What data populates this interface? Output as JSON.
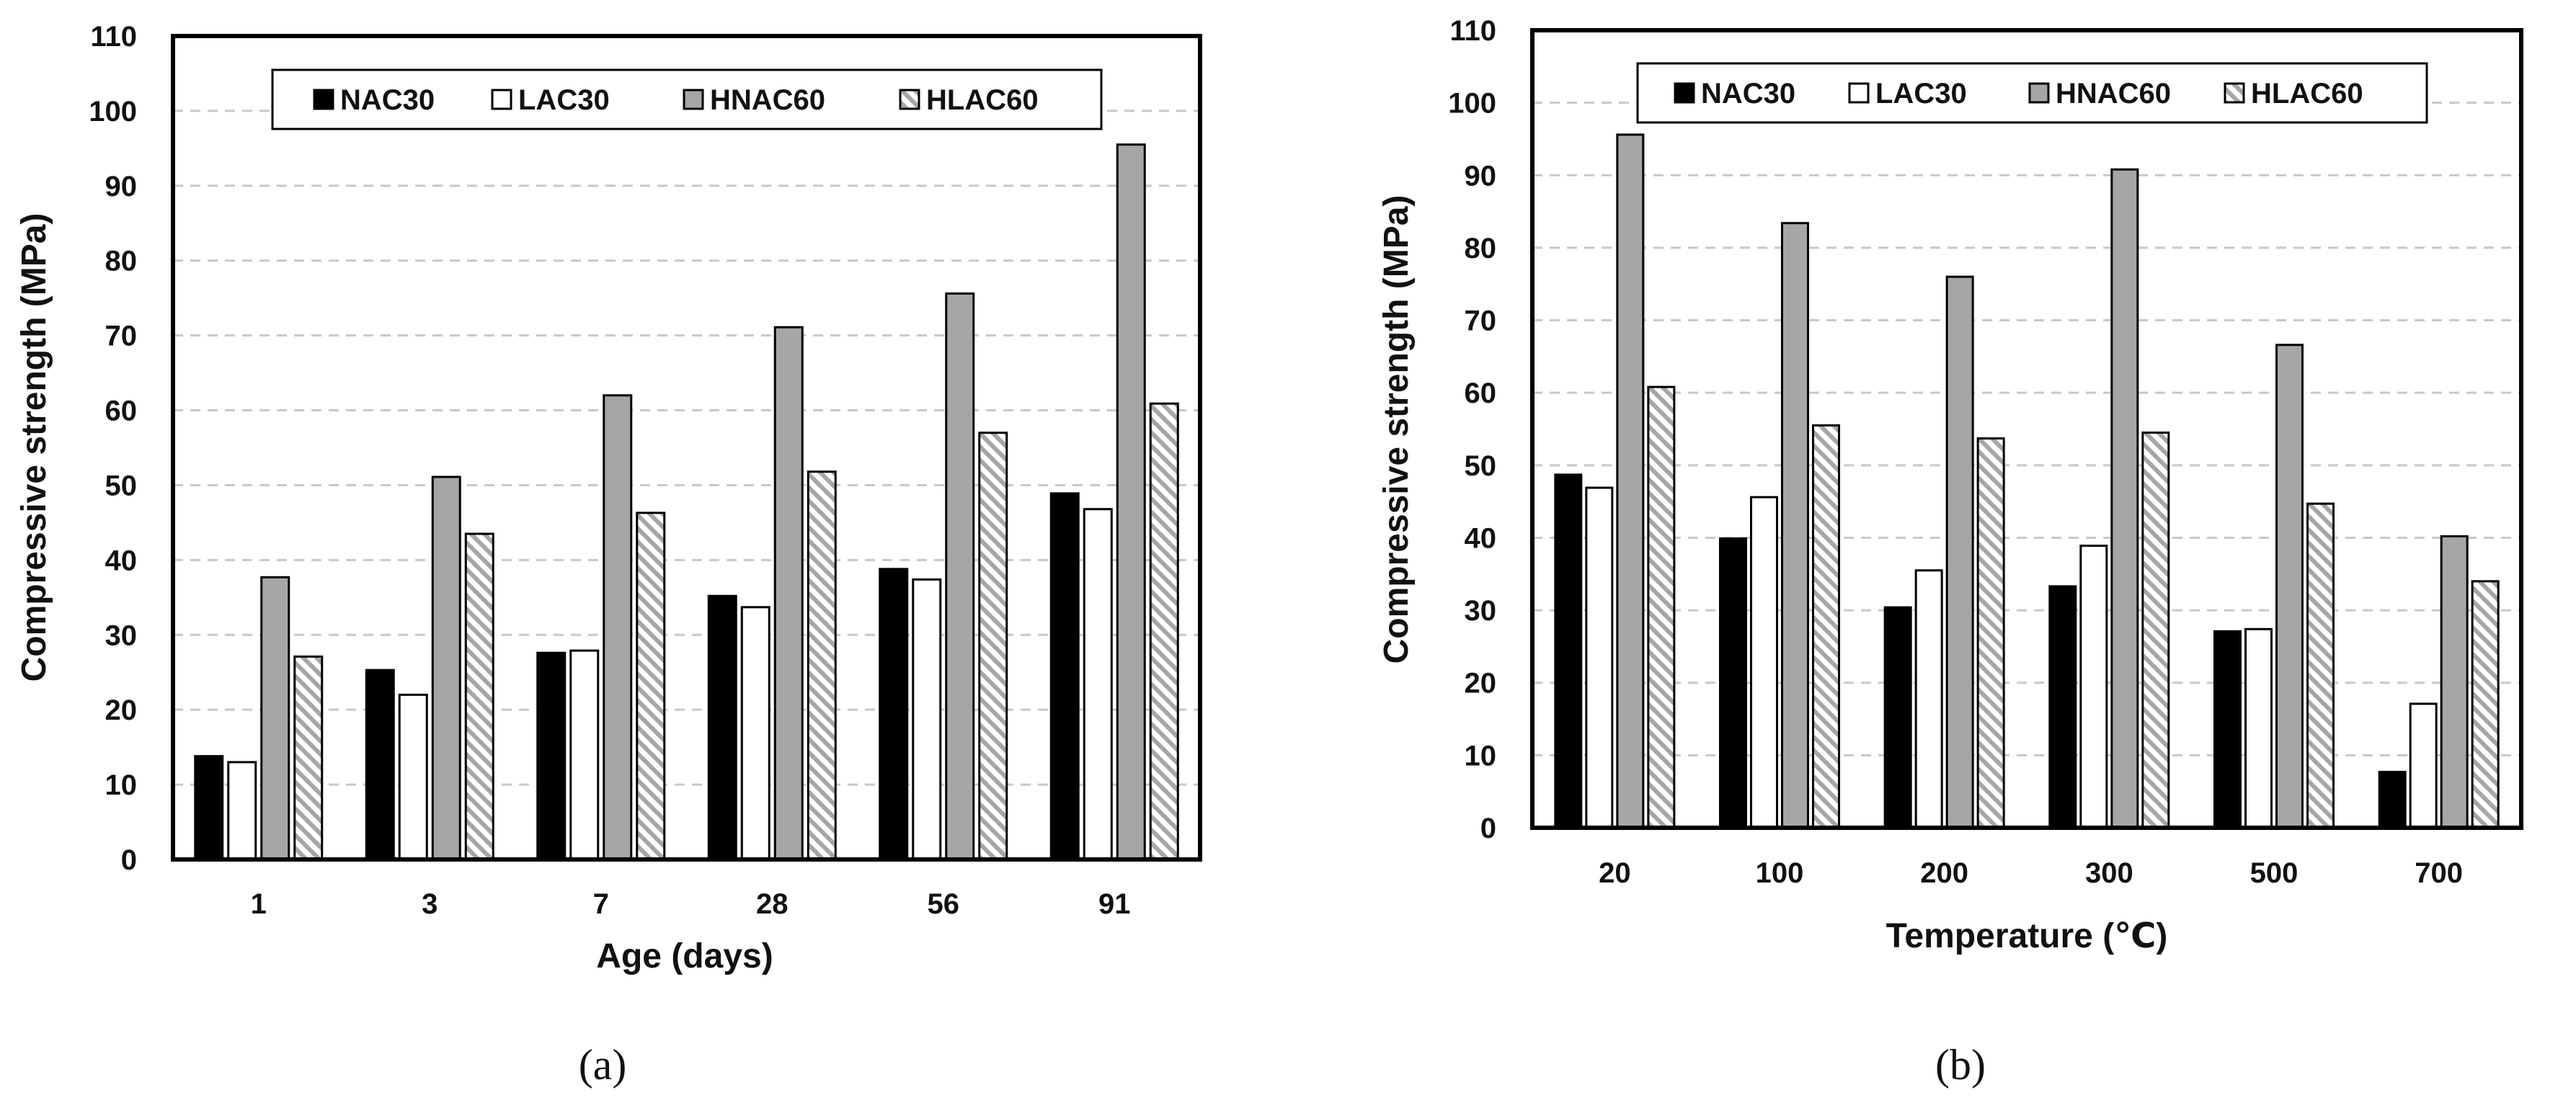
{
  "chart_data": [
    {
      "type": "bar",
      "panel": "(a)",
      "categories": [
        "1",
        "3",
        "7",
        "28",
        "56",
        "91"
      ],
      "series": [
        {
          "name": "NAC30",
          "values": [
            13.8,
            25.3,
            27.6,
            35.2,
            38.8,
            48.9
          ]
        },
        {
          "name": "LAC30",
          "values": [
            13.0,
            22.0,
            27.9,
            33.7,
            37.4,
            46.8
          ]
        },
        {
          "name": "HNAC60",
          "values": [
            37.7,
            51.1,
            62.0,
            71.1,
            75.6,
            95.5
          ]
        },
        {
          "name": "HLAC60",
          "values": [
            27.1,
            43.5,
            46.3,
            51.8,
            57.0,
            60.9
          ]
        }
      ],
      "title": "",
      "xlabel": "Age (days)",
      "ylabel": "Compressive strength (MPa)",
      "ylim": [
        0,
        110
      ],
      "yticks": [
        "0",
        "10",
        "20",
        "30",
        "40",
        "50",
        "60",
        "70",
        "80",
        "90",
        "100",
        "110"
      ],
      "grid": true,
      "legend": "top-center"
    },
    {
      "type": "bar",
      "panel": "(b)",
      "categories": [
        "20",
        "100",
        "200",
        "300",
        "500",
        "700"
      ],
      "series": [
        {
          "name": "NAC30",
          "values": [
            48.7,
            39.9,
            30.4,
            33.3,
            27.1,
            7.7
          ]
        },
        {
          "name": "LAC30",
          "values": [
            46.9,
            45.6,
            35.5,
            38.9,
            27.4,
            17.1
          ]
        },
        {
          "name": "HNAC60",
          "values": [
            95.6,
            83.4,
            76.0,
            90.8,
            66.6,
            40.2
          ]
        },
        {
          "name": "HLAC60",
          "values": [
            60.8,
            55.5,
            53.7,
            54.5,
            44.7,
            34.0
          ]
        }
      ],
      "title": "",
      "xlabel": "Temperature (℃)",
      "ylabel": "Compressive strength (MPa)",
      "ylim": [
        0,
        110
      ],
      "yticks": [
        "0",
        "10",
        "20",
        "30",
        "40",
        "50",
        "60",
        "70",
        "80",
        "90",
        "100",
        "110"
      ],
      "grid": true,
      "legend": "top-center"
    }
  ],
  "series_styles": {
    "NAC30": {
      "fill": "#000000"
    },
    "LAC30": {
      "fill": "#ffffff"
    },
    "HNAC60": {
      "fill": "#a6a6a6"
    },
    "HLAC60": {
      "fill": "hatch",
      "hatch_color": "#a6a6a6"
    }
  },
  "captions": [
    "(a)",
    "(b)"
  ]
}
